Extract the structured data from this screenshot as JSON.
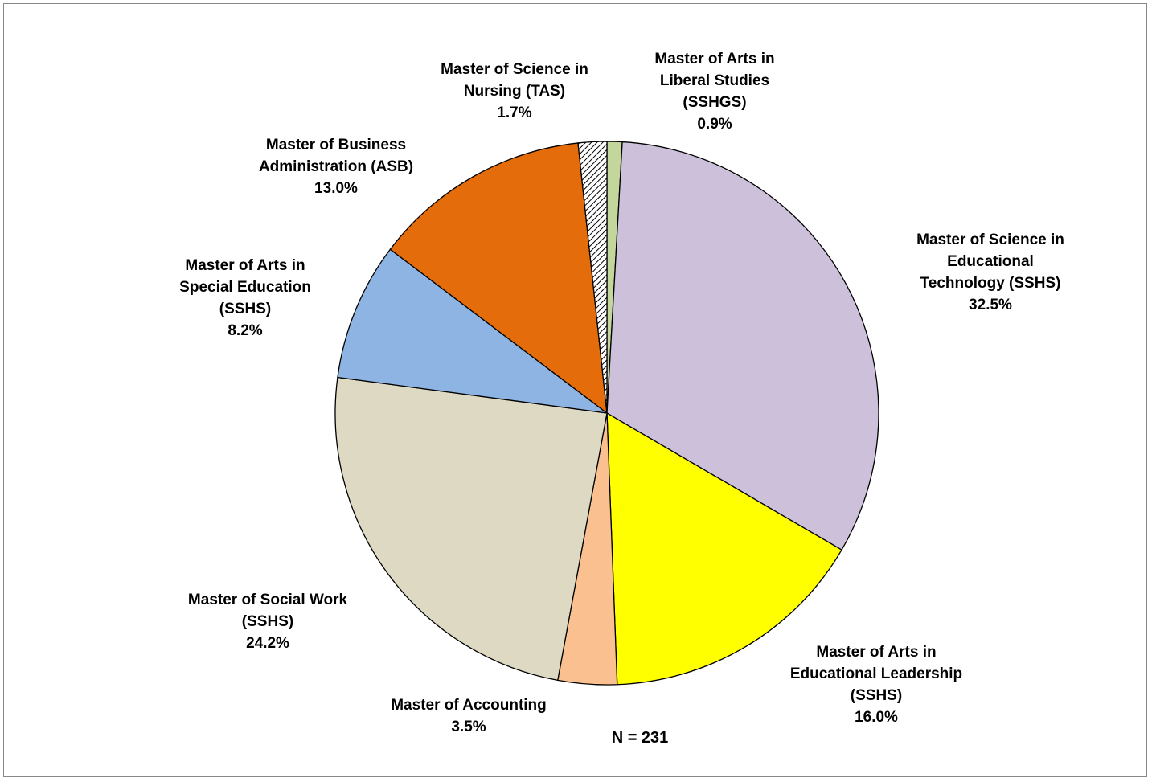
{
  "chart_data": {
    "type": "pie",
    "categories": [
      "Master of Arts in\nLiberal Studies\n(SSHGS)",
      "Master of Science in\nEducational\nTechnology (SSHS)",
      "Master of Arts in\nEducational Leadership\n(SSHS)",
      "Master of Accounting",
      "Master of Social Work\n(SSHS)",
      "Master of Arts in\nSpecial Education\n(SSHS)",
      "Master of Business\nAdministration (ASB)",
      "Master of Science in\nNursing (TAS)"
    ],
    "values": [
      0.9,
      32.5,
      16.0,
      3.5,
      24.2,
      8.2,
      13.0,
      1.7
    ],
    "value_labels": [
      "0.9%",
      "32.5%",
      "16.0%",
      "3.5%",
      "24.2%",
      "8.2%",
      "13.0%",
      "1.7%"
    ],
    "colors": [
      "#c3d69b",
      "#ccc0da",
      "#ffff00",
      "#fac090",
      "#ddd9c3",
      "#8eb4e3",
      "#e46c0a",
      "hatch"
    ],
    "note": "N = 231"
  }
}
